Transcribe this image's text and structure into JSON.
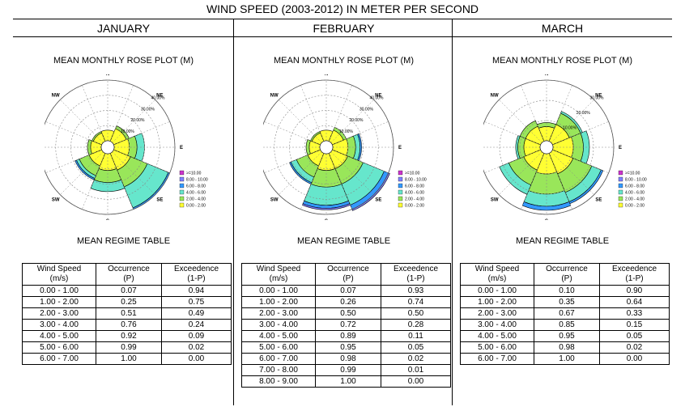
{
  "title": "WIND SPEED (2003-2012) IN METER PER SECOND",
  "colors": {
    "ge10": "#cc33cc",
    "8to10": "#8080ff",
    "6to8": "#3399ff",
    "4to6": "#66e6cc",
    "2to4": "#99e65a",
    "0to2": "#ffff33"
  },
  "chart_data": [
    {
      "type": "rose",
      "month": "JANUARY",
      "title": "MEAN MONTHLY ROSE PLOT (M)",
      "directions": [
        "N",
        "NE",
        "E",
        "SE",
        "S",
        "SW",
        "W",
        "NW"
      ],
      "ring_labels": [
        "10.00%",
        "20.00%",
        "30.00%",
        "40.00%"
      ],
      "rmax": 40,
      "legend": [
        ">=10.00",
        "8.00 - 10.00",
        "6.00 - 8.00",
        "4.00 - 6.00",
        "2.00 - 4.00",
        "0.00 - 2.00"
      ],
      "sectors": [
        {
          "start": 337.5,
          "end": 22.5,
          "values": [
            7,
            7,
            7,
            7,
            7,
            7
          ]
        },
        {
          "start": 22.5,
          "end": 67.5,
          "values": [
            9,
            11,
            11,
            11,
            11,
            11
          ]
        },
        {
          "start": 67.5,
          "end": 112.5,
          "values": [
            10,
            15,
            20,
            20,
            20,
            20
          ]
        },
        {
          "start": 112.5,
          "end": 157.5,
          "values": [
            12,
            24,
            39,
            40,
            40,
            40
          ]
        },
        {
          "start": 157.5,
          "end": 202.5,
          "values": [
            11,
            19,
            25,
            25,
            25,
            25
          ]
        },
        {
          "start": 202.5,
          "end": 247.5,
          "values": [
            9,
            16,
            18,
            19,
            19,
            19
          ]
        },
        {
          "start": 247.5,
          "end": 292.5,
          "values": [
            7,
            9,
            9,
            9,
            9,
            9
          ]
        },
        {
          "start": 292.5,
          "end": 337.5,
          "values": [
            6,
            7,
            7,
            7,
            7,
            7
          ]
        }
      ],
      "table": {
        "headers": [
          [
            "Wind Speed",
            "(m/s)"
          ],
          [
            "Occurrence",
            "(P)"
          ],
          [
            "Exceedence",
            "(1-P)"
          ]
        ],
        "rows": [
          [
            "0.00 - 1.00",
            "0.07",
            "0.94"
          ],
          [
            "1.00 - 2.00",
            "0.25",
            "0.75"
          ],
          [
            "2.00 - 3.00",
            "0.51",
            "0.49"
          ],
          [
            "3.00 - 4.00",
            "0.76",
            "0.24"
          ],
          [
            "4.00 - 5.00",
            "0.92",
            "0.09"
          ],
          [
            "5.00 - 6.00",
            "0.99",
            "0.02"
          ],
          [
            "6.00 - 7.00",
            "1.00",
            "0.00"
          ]
        ]
      }
    },
    {
      "type": "rose",
      "month": "FEBRUARY",
      "title": "MEAN MONTHLY ROSE PLOT (M)",
      "directions": [
        "N",
        "NE",
        "E",
        "SE",
        "S",
        "SW",
        "W",
        "NW"
      ],
      "ring_labels": [
        "10.00%",
        "20.00%",
        "30.00%",
        "40.00%"
      ],
      "rmax": 40,
      "legend": [
        ">=10.00",
        "8.00 - 10.00",
        "6.00 - 8.00",
        "4.00 - 6.00",
        "2.00 - 4.00",
        "0.00 - 2.00"
      ],
      "sectors": [
        {
          "start": 337.5,
          "end": 22.5,
          "values": [
            7,
            7,
            7,
            7,
            7,
            7
          ]
        },
        {
          "start": 22.5,
          "end": 67.5,
          "values": [
            8,
            10,
            10,
            10,
            10,
            10
          ]
        },
        {
          "start": 67.5,
          "end": 112.5,
          "values": [
            10,
            15,
            18,
            19,
            19,
            19
          ]
        },
        {
          "start": 112.5,
          "end": 157.5,
          "values": [
            11,
            22,
            37,
            40,
            41,
            41
          ]
        },
        {
          "start": 157.5,
          "end": 202.5,
          "values": [
            11,
            22,
            34,
            36,
            37,
            37
          ]
        },
        {
          "start": 202.5,
          "end": 247.5,
          "values": [
            9,
            17,
            21,
            22,
            22,
            22
          ]
        },
        {
          "start": 247.5,
          "end": 292.5,
          "values": [
            7,
            9,
            9,
            9,
            9,
            9
          ]
        },
        {
          "start": 292.5,
          "end": 337.5,
          "values": [
            6,
            7,
            7,
            7,
            7,
            7
          ]
        }
      ],
      "table": {
        "headers": [
          [
            "Wind Speed",
            "(m/s)"
          ],
          [
            "Occurrence",
            "(P)"
          ],
          [
            "Exceedence",
            "(1-P)"
          ]
        ],
        "rows": [
          [
            "0.00 - 1.00",
            "0.07",
            "0.93"
          ],
          [
            "1.00 - 2.00",
            "0.26",
            "0.74"
          ],
          [
            "2.00 - 3.00",
            "0.50",
            "0.50"
          ],
          [
            "3.00 - 4.00",
            "0.72",
            "0.28"
          ],
          [
            "4.00 - 5.00",
            "0.89",
            "0.11"
          ],
          [
            "5.00 - 6.00",
            "0.95",
            "0.05"
          ],
          [
            "6.00 - 7.00",
            "0.98",
            "0.02"
          ],
          [
            "7.00 - 8.00",
            "0.99",
            "0.01"
          ],
          [
            "8.00 - 9.00",
            "1.00",
            "0.00"
          ]
        ]
      }
    },
    {
      "type": "rose",
      "month": "MARCH",
      "title": "MEAN MONTHLY ROSE PLOT (M)",
      "directions": [
        "N",
        "NE",
        "E",
        "SE",
        "S",
        "SW",
        "W",
        "NW"
      ],
      "ring_labels": [
        "10.00%",
        "20.00%",
        "30.00%"
      ],
      "rmax": 30,
      "legend": [
        ">=10.00",
        "8.00 - 10.00",
        "6.00 - 8.00",
        "4.00 - 6.00",
        "2.00 - 4.00",
        "0.00 - 2.00"
      ],
      "sectors": [
        {
          "start": 337.5,
          "end": 22.5,
          "values": [
            7,
            9,
            9,
            9,
            9,
            9
          ]
        },
        {
          "start": 22.5,
          "end": 67.5,
          "values": [
            9,
            15,
            16,
            16,
            16,
            16
          ]
        },
        {
          "start": 67.5,
          "end": 112.5,
          "values": [
            10,
            15,
            18,
            18,
            18,
            18
          ]
        },
        {
          "start": 112.5,
          "end": 157.5,
          "values": [
            11,
            21,
            26,
            27,
            27,
            27
          ]
        },
        {
          "start": 157.5,
          "end": 202.5,
          "values": [
            10,
            20,
            26,
            28,
            28,
            28
          ]
        },
        {
          "start": 202.5,
          "end": 247.5,
          "values": [
            9,
            17,
            22,
            22,
            22,
            22
          ]
        },
        {
          "start": 247.5,
          "end": 292.5,
          "values": [
            8,
            11,
            12,
            12,
            12,
            12
          ]
        },
        {
          "start": 292.5,
          "end": 337.5,
          "values": [
            8,
            11,
            11,
            11,
            11,
            11
          ]
        }
      ],
      "table": {
        "headers": [
          [
            "Wind Speed",
            "(m/s)"
          ],
          [
            "Occurrence",
            "(P)"
          ],
          [
            "Exceedence",
            "(1-P)"
          ]
        ],
        "rows": [
          [
            "0.00 - 1.00",
            "0.10",
            "0.90"
          ],
          [
            "1.00 - 2.00",
            "0.35",
            "0.64"
          ],
          [
            "2.00 - 3.00",
            "0.67",
            "0.33"
          ],
          [
            "3.00 - 4.00",
            "0.85",
            "0.15"
          ],
          [
            "4.00 - 5.00",
            "0.95",
            "0.05"
          ],
          [
            "5.00 - 6.00",
            "0.98",
            "0.02"
          ],
          [
            "6.00 - 7.00",
            "1.00",
            "0.00"
          ]
        ]
      }
    }
  ]
}
